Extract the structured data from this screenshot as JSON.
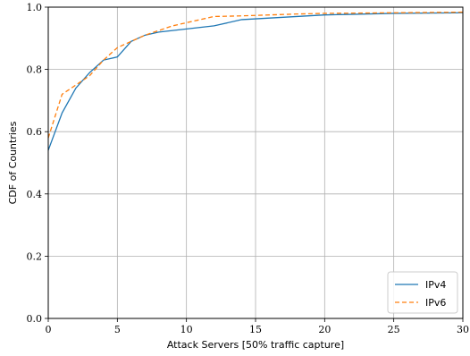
{
  "chart_data": {
    "type": "line",
    "title": "",
    "xlabel": "Attack Servers [50% traffic capture]",
    "ylabel": "CDF of Countries",
    "xlim": [
      0,
      30
    ],
    "ylim": [
      0.0,
      1.0
    ],
    "x_ticks": [
      "0",
      "5",
      "10",
      "15",
      "20",
      "25",
      "30"
    ],
    "y_ticks": [
      "0.0",
      "0.2",
      "0.4",
      "0.6",
      "0.8",
      "1.0"
    ],
    "grid": true,
    "legend_position": "bottom-right",
    "series": [
      {
        "name": "IPv4",
        "color": "#1f77b4",
        "line_style": "solid",
        "x": [
          0,
          1,
          2,
          3,
          4,
          5,
          6,
          7,
          8,
          10,
          12,
          14,
          16,
          18,
          20,
          25,
          30
        ],
        "y": [
          0.54,
          0.66,
          0.74,
          0.79,
          0.83,
          0.84,
          0.89,
          0.91,
          0.92,
          0.93,
          0.94,
          0.96,
          0.965,
          0.97,
          0.975,
          0.98,
          0.982
        ]
      },
      {
        "name": "IPv6",
        "color": "#ff7f0e",
        "line_style": "dashed",
        "x": [
          0,
          1,
          2,
          3,
          4,
          5,
          6,
          7,
          9,
          11,
          12,
          14,
          16,
          18,
          20,
          25,
          30
        ],
        "y": [
          0.58,
          0.72,
          0.75,
          0.78,
          0.83,
          0.87,
          0.89,
          0.91,
          0.94,
          0.96,
          0.97,
          0.972,
          0.975,
          0.978,
          0.98,
          0.982,
          0.984
        ]
      }
    ]
  }
}
